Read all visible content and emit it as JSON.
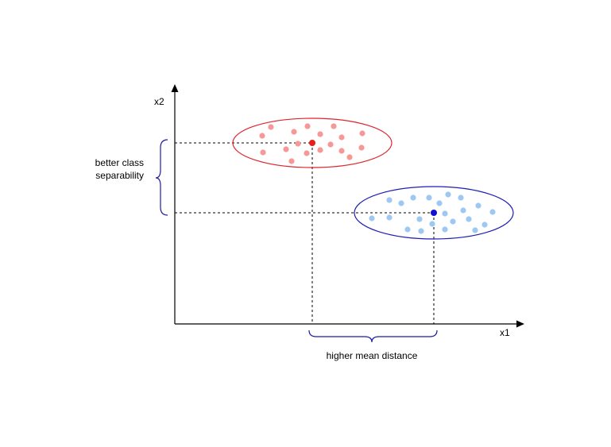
{
  "diagram": {
    "axis_labels": {
      "x": "x1",
      "y": "x2"
    },
    "annotations": {
      "separability_line1": "better class",
      "separability_line2": "separability",
      "mean_distance": "higher mean distance"
    },
    "colors": {
      "axis": "#000000",
      "class_a_ellipse": "#e0242b",
      "class_a_points": "#f59896",
      "class_a_mean": "#e61e1e",
      "class_b_ellipse": "#1e1eb4",
      "class_b_points": "#9cc8f2",
      "class_b_mean": "#1010d0",
      "brace": "#1a1aa8",
      "guide_lines": "#000000"
    },
    "clusters": [
      {
        "name": "class-a",
        "point_count": 18
      },
      {
        "name": "class-b",
        "point_count": 22
      }
    ]
  }
}
